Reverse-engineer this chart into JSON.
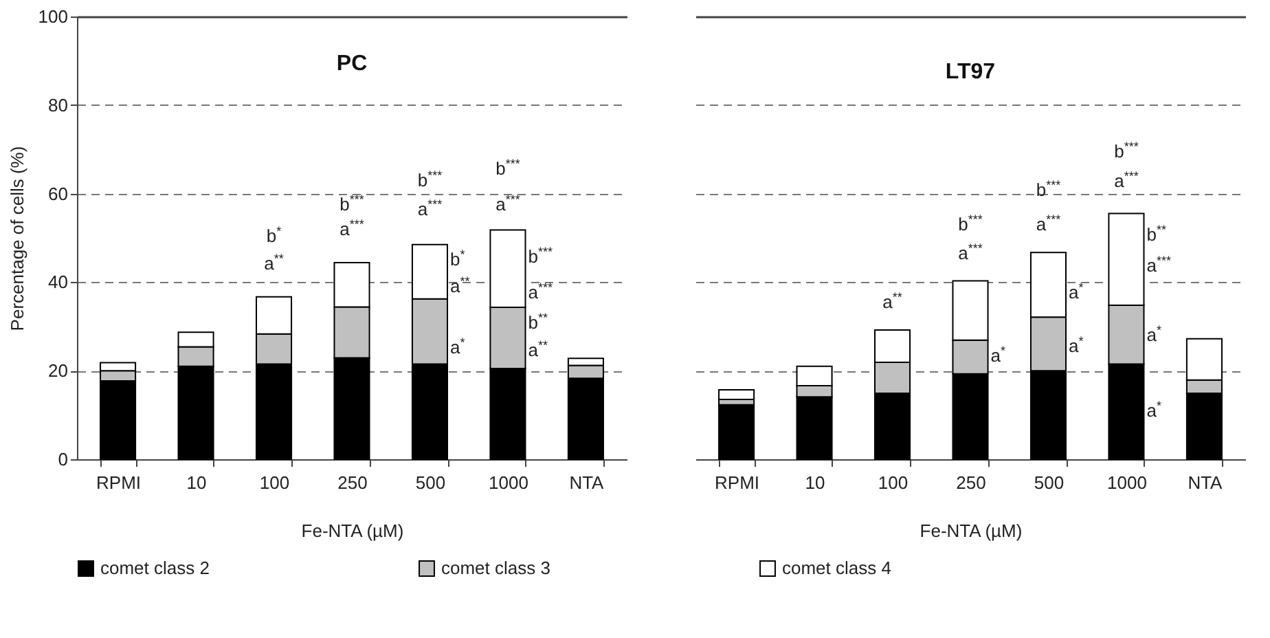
{
  "chart_data": [
    {
      "type": "bar",
      "title": "PC",
      "xlabel": "Fe-NTA (µM)",
      "ylabel": "Percentage of cells (%)",
      "categories": [
        "RPMI",
        "10",
        "100",
        "250",
        "500",
        "1000",
        "NTA"
      ],
      "stacked": true,
      "series": [
        {
          "name": "comet class 2",
          "color": "#000000",
          "values": [
            17.7,
            21.0,
            21.5,
            22.9,
            21.5,
            20.5,
            18.3
          ]
        },
        {
          "name": "comet class 3",
          "color": "#c0c0c0",
          "values": [
            2.3,
            4.4,
            6.8,
            11.5,
            14.7,
            13.8,
            2.9
          ]
        },
        {
          "name": "comet class 4",
          "color": "#ffffff",
          "values": [
            1.8,
            3.3,
            8.4,
            10.0,
            12.3,
            17.5,
            1.6
          ]
        }
      ],
      "ylim": [
        0,
        100
      ],
      "yticks": [
        0,
        20,
        40,
        60,
        80,
        100
      ],
      "grid": "y",
      "legend": "bottom",
      "annotations": [
        "b$^{*}$",
        "a$^{**}$",
        "b$^{***}$",
        "a$^{***}$",
        "b$^{***}$",
        "a$^{***}$",
        "b$^{*}$",
        "a$^{**}$",
        "a$^{*}$",
        "b$^{***}$",
        "a$^{***}$",
        "b$^{***}$",
        "a$^{***}$",
        "b$^{**}$",
        "a$^{**}$"
      ]
    },
    {
      "type": "bar",
      "title": "LT97",
      "xlabel": "Fe-NTA (µM)",
      "categories": [
        "RPMI",
        "10",
        "100",
        "250",
        "500",
        "1000",
        "NTA"
      ],
      "stacked": true,
      "series": [
        {
          "name": "comet class 2",
          "color": "#000000",
          "values": [
            12.3,
            14.1,
            14.9,
            19.3,
            20.0,
            21.5,
            14.9
          ]
        },
        {
          "name": "comet class 3",
          "color": "#c0c0c0",
          "values": [
            1.2,
            2.5,
            7.0,
            7.6,
            12.1,
            13.3,
            3.0
          ]
        },
        {
          "name": "comet class 4",
          "color": "#ffffff",
          "values": [
            2.2,
            4.4,
            7.3,
            13.4,
            14.6,
            20.7,
            9.3
          ]
        }
      ],
      "ylim": [
        0,
        100
      ],
      "yticks": [
        0,
        20,
        40,
        60,
        80,
        100
      ],
      "grid": "y",
      "legend": "bottom",
      "tick_labels": "x",
      "annotations": [
        "a$^{**}$",
        "b$^{***}$",
        "a$^{***}$",
        "a$^{*}$",
        "b$^{***}$",
        "a$^{***}$",
        "a$^{*}$",
        "a$^{*}$",
        "b$^{***}$",
        "a$^{***}$",
        "b$^{**}$",
        "a$^{***}$",
        "a$^{*}$",
        "a$^{*}$"
      ]
    }
  ]
}
